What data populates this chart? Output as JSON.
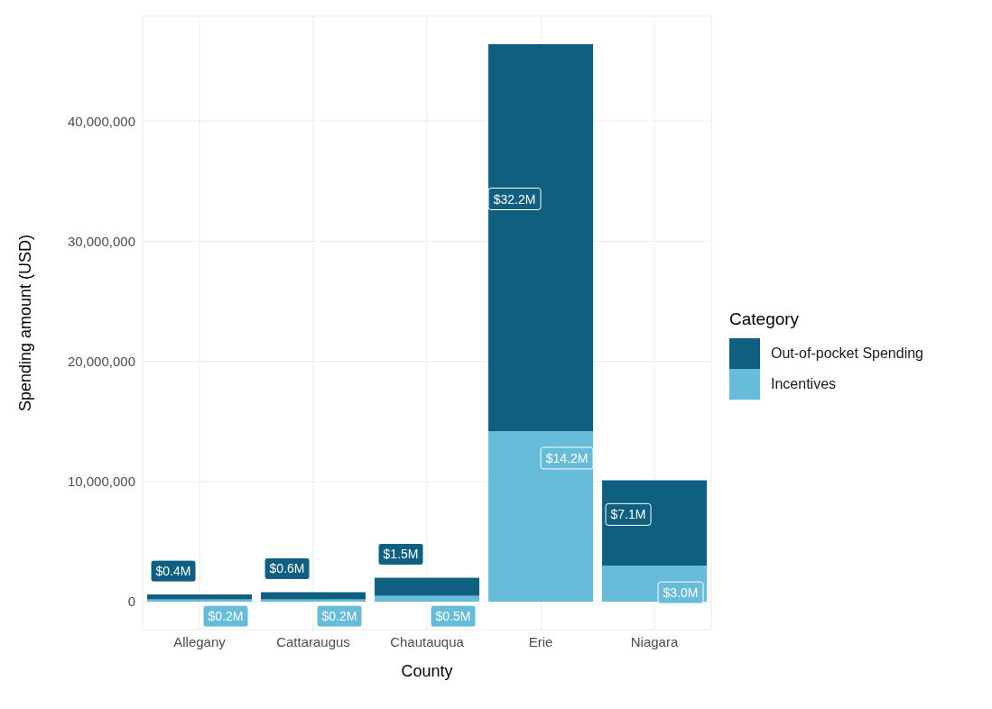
{
  "chart_data": {
    "type": "bar",
    "stacked": true,
    "xlabel": "County",
    "ylabel": "Spending amount (USD)",
    "legend_title": "Category",
    "legend": "right",
    "grid": true,
    "categories": [
      "Allegany",
      "Cattaraugus",
      "Chautauqua",
      "Erie",
      "Niagara"
    ],
    "series": [
      {
        "name": "Incentives",
        "color": "#67bcd9",
        "values": [
          200000,
          200000,
          500000,
          14200000,
          3000000
        ],
        "value_labels": [
          "$0.2M",
          "$0.2M",
          "$0.5M",
          "$14.2M",
          "$3.0M"
        ]
      },
      {
        "name": "Out-of-pocket Spending",
        "color": "#0f5f80",
        "values": [
          400000,
          600000,
          1500000,
          32200000,
          7100000
        ],
        "value_labels": [
          "$0.4M",
          "$0.6M",
          "$1.5M",
          "$32.2M",
          "$7.1M"
        ]
      }
    ],
    "ylim": [
      -2320000,
      48720000
    ],
    "yticks": [
      {
        "value": 0,
        "label": "0"
      },
      {
        "value": 10000000,
        "label": "10,000,000"
      },
      {
        "value": 20000000,
        "label": "20,000,000"
      },
      {
        "value": 30000000,
        "label": "30,000,000"
      },
      {
        "value": 40000000,
        "label": "40,000,000"
      }
    ]
  }
}
